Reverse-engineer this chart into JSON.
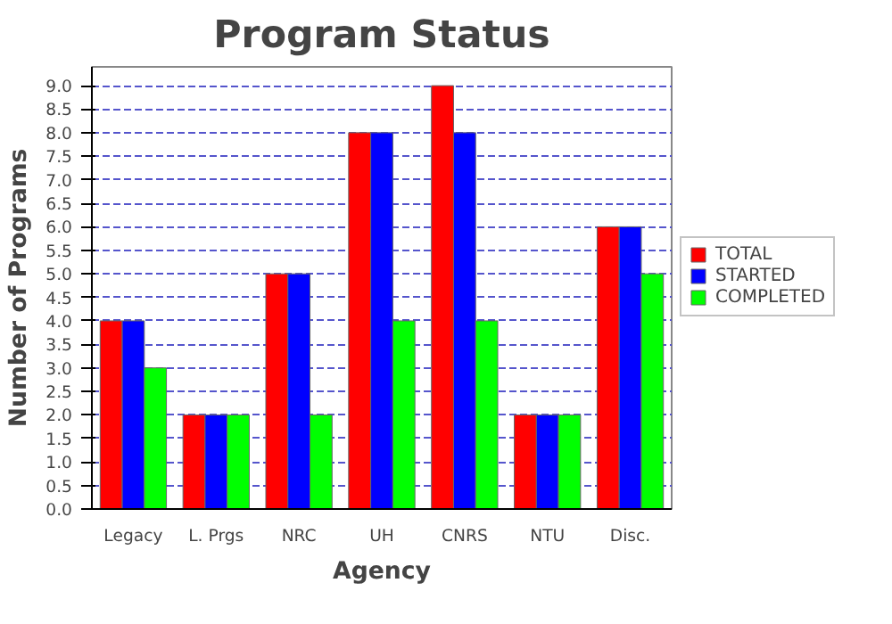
{
  "chart_data": {
    "type": "bar",
    "title": "Program Status",
    "xlabel": "Agency",
    "ylabel": "Number of Programs",
    "categories": [
      "Legacy",
      "L. Prgs",
      "NRC",
      "UH",
      "CNRS",
      "NTU",
      "Disc."
    ],
    "series": [
      {
        "name": "TOTAL",
        "color": "#ff0000",
        "values": [
          4,
          2,
          5,
          8,
          9,
          2,
          6
        ]
      },
      {
        "name": "STARTED",
        "color": "#0000ff",
        "values": [
          4,
          2,
          5,
          8,
          8,
          2,
          6
        ]
      },
      {
        "name": "COMPLETED",
        "color": "#00ff00",
        "values": [
          3,
          2,
          2,
          4,
          4,
          2,
          5
        ]
      }
    ],
    "ylim": [
      0,
      9.4
    ],
    "yticks": [
      {
        "value": 0,
        "label": "0.0"
      },
      {
        "value": 0.5,
        "label": "0.5"
      },
      {
        "value": 1,
        "label": "1.0"
      },
      {
        "value": 1.5,
        "label": "1.5"
      },
      {
        "value": 2,
        "label": "2.0"
      },
      {
        "value": 2.5,
        "label": "2.5"
      },
      {
        "value": 3,
        "label": "3.0"
      },
      {
        "value": 3.5,
        "label": "3.5"
      },
      {
        "value": 4,
        "label": "4.0"
      },
      {
        "value": 4.5,
        "label": "4.5"
      },
      {
        "value": 5,
        "label": "5.0"
      },
      {
        "value": 5.5,
        "label": "5.5"
      },
      {
        "value": 6,
        "label": "6.0"
      },
      {
        "value": 6.5,
        "label": "6.5"
      },
      {
        "value": 7,
        "label": "7.0"
      },
      {
        "value": 7.5,
        "label": "7.5"
      },
      {
        "value": 8,
        "label": "8.0"
      },
      {
        "value": 8.5,
        "label": "8.5"
      },
      {
        "value": 9,
        "label": "9.0"
      }
    ],
    "grid": "y",
    "legend": "right"
  }
}
